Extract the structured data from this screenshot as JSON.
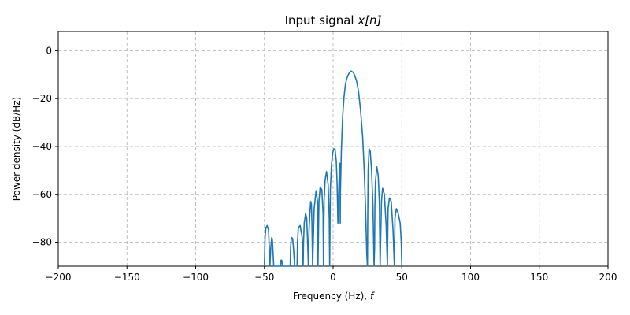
{
  "chart_data": {
    "type": "line",
    "title": "Input signal x[n]",
    "title_parts": {
      "text": "Input signal ",
      "math": "x[n]"
    },
    "xlabel": "Frequency (Hz), f",
    "xlabel_parts": {
      "text": "Frequency (Hz), ",
      "math": "f"
    },
    "ylabel": "Power density (dB/Hz)",
    "xlim": [
      -200,
      200
    ],
    "ylim": [
      -90,
      8
    ],
    "xticks": [
      -200,
      -150,
      -100,
      -50,
      0,
      50,
      100,
      150,
      200
    ],
    "xtick_labels": [
      "−200",
      "−150",
      "−100",
      "−50",
      "0",
      "50",
      "100",
      "150",
      "200"
    ],
    "yticks": [
      0,
      -20,
      -40,
      -60,
      -80
    ],
    "ytick_labels": [
      "0",
      "−20",
      "−40",
      "−60",
      "−80"
    ],
    "grid": true,
    "colors": {
      "line": "#1f77b4",
      "grid": "#b0b0b0"
    },
    "series": [
      {
        "x": [
          -50.0,
          -49.5,
          -48.9,
          -48.0,
          -47.0,
          -46.2,
          -46.0,
          -45.3,
          -44.6,
          -44.2,
          -43.9,
          -43.2,
          -42.7,
          -42.6,
          -38.3,
          -37.9,
          -37.4,
          -36.8,
          -36.5,
          -31.2,
          -30.9,
          -30.3,
          -29.4,
          -28.5,
          -28.0,
          -26.2,
          -25.9,
          -25.3,
          -24.0,
          -22.5,
          -21.8,
          -21.5,
          -21.0,
          -20.0,
          -19.2,
          -18.4,
          -18.0,
          -17.5,
          -16.8,
          -16.3,
          -15.8,
          -15.4,
          -14.9,
          -13.8,
          -12.4,
          -11.3,
          -11.0,
          -10.3,
          -9.4,
          -8.2,
          -7.3,
          -7.0,
          -6.5,
          -5.8,
          -4.8,
          -3.6,
          -2.8,
          -2.5,
          -2.0,
          -1.2,
          -0.4,
          0.5,
          1.4,
          2.3,
          2.9,
          3.5,
          4.3,
          5.0,
          5.2,
          5.3,
          6.0,
          6.5,
          7.0,
          8.0,
          9.0,
          10.0,
          11.5,
          13.0,
          14.5,
          15.5,
          17.0,
          18.5,
          20.0,
          21.5,
          22.5,
          23.5,
          24.5,
          25.0,
          25.2,
          25.5,
          26.2,
          27.0,
          28.0,
          29.0,
          29.8,
          30.2,
          30.4,
          30.8,
          31.8,
          32.8,
          33.7,
          34.2,
          35.2,
          36.0,
          37.3,
          38.6,
          39.5,
          40.0,
          41.0,
          42.3,
          43.6,
          44.6,
          45.0,
          46.0,
          47.4,
          48.8,
          49.6,
          50.0
        ],
        "y": [
          -90.0,
          -78.0,
          -74.0,
          -73.0,
          -75.0,
          -85.0,
          -90.0,
          -82.0,
          -78.0,
          -79.0,
          -82.0,
          -90.0,
          -90.0,
          -90.0,
          -90.0,
          -87.5,
          -87.5,
          -90.0,
          -90.0,
          -90.0,
          -82.0,
          -78.0,
          -78.5,
          -85.0,
          -90.0,
          -90.0,
          -80.0,
          -74.0,
          -73.0,
          -78.0,
          -90.0,
          -80.0,
          -72.0,
          -68.0,
          -70.0,
          -82.0,
          -90.0,
          -75.0,
          -67.0,
          -63.0,
          -64.0,
          -72.0,
          -90.0,
          -66.0,
          -58.5,
          -63.0,
          -90.0,
          -63.0,
          -57.0,
          -58.0,
          -68.0,
          -90.0,
          -62.0,
          -54.0,
          -50.5,
          -56.0,
          -70.0,
          -90.0,
          -58.0,
          -48.0,
          -43.0,
          -41.0,
          -41.0,
          -46.0,
          -55.0,
          -72.0,
          -55.0,
          -47.0,
          -72.0,
          -60.0,
          -42.0,
          -34.0,
          -27.0,
          -19.0,
          -14.0,
          -11.5,
          -9.5,
          -8.5,
          -9.0,
          -10.0,
          -12.5,
          -17.0,
          -25.0,
          -36.0,
          -48.0,
          -64.0,
          -85.0,
          -90.0,
          -70.0,
          -50.0,
          -41.0,
          -42.0,
          -50.0,
          -65.0,
          -90.0,
          -82.0,
          -65.0,
          -55.0,
          -48.5,
          -52.0,
          -64.0,
          -90.0,
          -63.0,
          -57.5,
          -60.0,
          -73.0,
          -90.0,
          -66.0,
          -61.5,
          -63.0,
          -75.0,
          -90.0,
          -70.0,
          -66.0,
          -68.0,
          -72.0,
          -80.0,
          -90.0
        ]
      }
    ]
  }
}
